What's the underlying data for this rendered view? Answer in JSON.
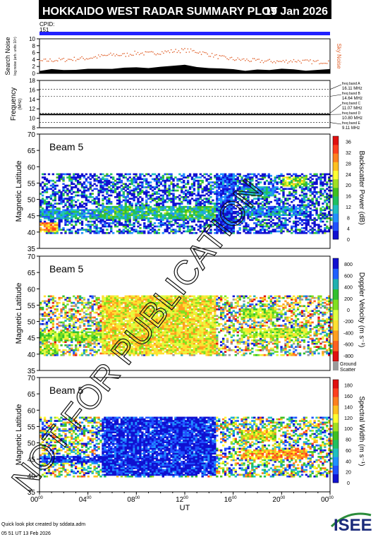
{
  "header": {
    "title": "HOKKAIDO WEST RADAR SUMMARY PLOT",
    "date": "19 Jan 2026",
    "cpid_label": "CPID:",
    "cpid_value": "151"
  },
  "colors": {
    "title_bg": "#000000",
    "title_fg": "#ffffff",
    "cpid_bar": "#2020ff",
    "noise_sky": "#e0602a",
    "ground_scatter": "#9a9a9a"
  },
  "footer": {
    "credit": "Quick look plot created by sddata.adm",
    "created": "05 51 UT 13 Feb 2026",
    "logo_text": "ISEE"
  },
  "watermark": "NOT FOR PUBLICATION",
  "x_axis": {
    "label": "UT",
    "ticks": [
      "00",
      "04",
      "08",
      "12",
      "16",
      "20",
      "00"
    ],
    "tick_sup": "00",
    "tick_hours": [
      0,
      4,
      8,
      12,
      16,
      20,
      24
    ]
  },
  "chart_data": [
    {
      "type": "line",
      "panel": "noise",
      "ylabel": "Search Noise",
      "ylabel_sub": "log noise (arb. units 10⁴)",
      "ylim": [
        0,
        10
      ],
      "yticks": [
        "0",
        "2",
        "4",
        "6",
        "8",
        "10"
      ],
      "series": [
        {
          "name": "Sky Noise",
          "x": [
            0,
            1,
            2,
            3,
            4,
            5,
            6,
            7,
            8,
            9,
            10,
            11,
            12,
            13,
            14,
            15,
            16,
            17,
            18,
            19,
            20,
            21,
            22,
            23,
            24
          ],
          "values": [
            3.5,
            3.8,
            3.9,
            4.2,
            4.4,
            4.9,
            5.4,
            5.3,
            5.9,
            5.7,
            6.1,
            6.4,
            6.7,
            6.3,
            5.5,
            4.6,
            4.1,
            3.9,
            3.6,
            3.5,
            3.4,
            3.7,
            3.4,
            3.3,
            3.5
          ]
        },
        {
          "name": "Search Noise",
          "x": [
            0,
            1,
            2,
            3,
            4,
            5,
            6,
            7,
            8,
            9,
            10,
            11,
            12,
            13,
            14,
            15,
            16,
            17,
            18,
            19,
            20,
            21,
            22,
            23,
            24
          ],
          "values": [
            1.0,
            1.0,
            1.1,
            1.2,
            1.2,
            1.3,
            1.4,
            1.5,
            1.6,
            1.5,
            1.8,
            2.1,
            2.3,
            2.0,
            1.6,
            1.3,
            1.1,
            1.0,
            1.0,
            1.0,
            1.1,
            1.0,
            1.0,
            1.0,
            1.0
          ]
        }
      ]
    },
    {
      "type": "line",
      "panel": "frequency",
      "ylabel": "Frequency",
      "ylabel_sub": "(MHz)",
      "ylim": [
        8,
        18
      ],
      "yticks": [
        "8",
        "10",
        "12",
        "14",
        "16",
        "18"
      ],
      "freq_bands": [
        {
          "label": "freq band A",
          "value": "16.11 MHz",
          "mhz": 16.11
        },
        {
          "label": "freq band B",
          "value": "14.64 MHz",
          "mhz": 14.64
        },
        {
          "label": "freq band C",
          "value": "11.07 MHz",
          "mhz": 11.07
        },
        {
          "label": "freq band D",
          "value": "10.80 MHz",
          "mhz": 10.8
        },
        {
          "label": "freq band E",
          "value": "9.11 MHz",
          "mhz": 9.11
        }
      ],
      "series": [
        {
          "name": "",
          "x": [
            0,
            24
          ],
          "values": [
            10.8,
            10.8
          ]
        }
      ]
    },
    {
      "type": "heatmap",
      "panel": "power",
      "beam_label": "Beam  5",
      "ylabel": "Magnetic Latitude",
      "ylim": [
        35,
        70
      ],
      "yticks": [
        "35",
        "40",
        "45",
        "50",
        "55",
        "60",
        "65",
        "70"
      ],
      "colorbar": {
        "label": "Backscatter Power (dB)",
        "ticks": [
          "0",
          "4",
          "8",
          "12",
          "16",
          "20",
          "24",
          "28",
          "32",
          "36"
        ],
        "range": [
          0,
          38
        ],
        "colors": [
          "#1010d0",
          "#2050ff",
          "#2090ff",
          "#20c0c0",
          "#20c060",
          "#40c020",
          "#a0e020",
          "#ffff30",
          "#ffc020",
          "#ff8020",
          "#ff4020",
          "#e01010"
        ]
      },
      "coverage": {
        "lat_top": 58,
        "lat_bottom": 39.5
      },
      "regions": [
        {
          "x": [
            0,
            5
          ],
          "lat": [
            44,
            47
          ],
          "value": 10
        },
        {
          "x": [
            0,
            1.5
          ],
          "lat": [
            40,
            43
          ],
          "value": 28
        },
        {
          "x": [
            5,
            14.5
          ],
          "lat": [
            44,
            48
          ],
          "value": 14
        },
        {
          "x": [
            14.5,
            16
          ],
          "lat": [
            40,
            58
          ],
          "value": 4
        },
        {
          "x": [
            16.5,
            19.5
          ],
          "lat": [
            51,
            54
          ],
          "value": 10
        },
        {
          "x": [
            16.5,
            22
          ],
          "lat": [
            45,
            48
          ],
          "value": 8
        },
        {
          "x": [
            20,
            22
          ],
          "lat": [
            54,
            57
          ],
          "value": 20
        }
      ],
      "background": {
        "value": 2,
        "density": 0.55
      },
      "ground_scatter": false
    },
    {
      "type": "heatmap",
      "panel": "velocity",
      "beam_label": "Beam  5",
      "ylabel": "Magnetic Latitude",
      "ylim": [
        35,
        70
      ],
      "yticks": [
        "35",
        "40",
        "45",
        "50",
        "55",
        "60",
        "65",
        "70"
      ],
      "colorbar": {
        "label": "Doppler Velocity (m s⁻¹)",
        "ticks": [
          "-800",
          "-600",
          "-400",
          "-200",
          "0",
          "200",
          "400",
          "600",
          "800"
        ],
        "range": [
          -900,
          900
        ],
        "colors": [
          "#e01010",
          "#ff6020",
          "#ffa020",
          "#ffe030",
          "#e0ff40",
          "#80e020",
          "#30c030",
          "#20b0b0",
          "#2060ff",
          "#1010d0"
        ],
        "ground_label": "Ground Scatter"
      },
      "coverage": {
        "lat_top": 58,
        "lat_bottom": 39.5
      },
      "regions": [
        {
          "x": [
            0,
            5
          ],
          "lat": [
            44,
            47
          ],
          "value": 50
        },
        {
          "x": [
            0,
            1.5
          ],
          "lat": [
            40,
            43
          ],
          "value": 40
        },
        {
          "x": [
            5,
            14.5
          ],
          "lat": [
            40,
            58
          ],
          "value": -200
        },
        {
          "x": [
            16.5,
            19.5
          ],
          "lat": [
            51,
            54
          ],
          "value": 0
        },
        {
          "x": [
            16.5,
            22
          ],
          "lat": [
            45,
            48
          ],
          "value": -50
        }
      ],
      "background": {
        "value": 0,
        "density": 0.5
      },
      "ground_scatter": true
    },
    {
      "type": "heatmap",
      "panel": "width",
      "beam_label": "Beam  5",
      "ylabel": "Magnetic Latitude",
      "ylim": [
        35,
        70
      ],
      "yticks": [
        "35",
        "40",
        "45",
        "50",
        "55",
        "60",
        "65",
        "70"
      ],
      "colorbar": {
        "label": "Spectral Width (m s⁻¹)",
        "ticks": [
          "0",
          "20",
          "40",
          "60",
          "80",
          "100",
          "120",
          "140",
          "160",
          "180"
        ],
        "range": [
          0,
          190
        ],
        "colors": [
          "#1010d0",
          "#2050ff",
          "#2090ff",
          "#20c0c0",
          "#20c060",
          "#40c020",
          "#a0e020",
          "#ffff30",
          "#ffc020",
          "#ff8020",
          "#ff4020",
          "#e01010"
        ]
      },
      "coverage": {
        "lat_top": 58,
        "lat_bottom": 39.5
      },
      "regions": [
        {
          "x": [
            0,
            5
          ],
          "lat": [
            44,
            46
          ],
          "value": 15
        },
        {
          "x": [
            5,
            14.5
          ],
          "lat": [
            40,
            58
          ],
          "value": 10
        },
        {
          "x": [
            16.5,
            19.5
          ],
          "lat": [
            51,
            54
          ],
          "value": 120
        },
        {
          "x": [
            16.5,
            22
          ],
          "lat": [
            45,
            48
          ],
          "value": 140
        }
      ],
      "background": {
        "value": 80,
        "density": 0.5
      },
      "ground_scatter": false
    }
  ]
}
